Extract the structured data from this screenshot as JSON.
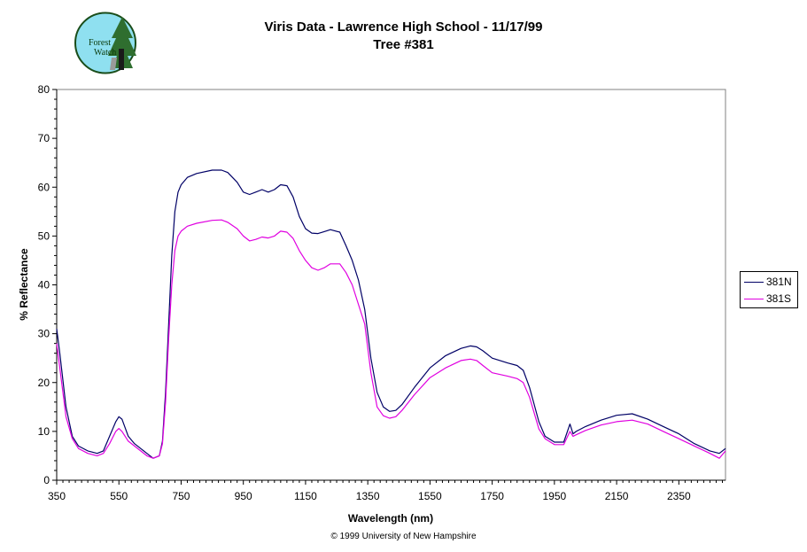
{
  "logo": {
    "text_line1": "Forest",
    "text_line2": "Watch"
  },
  "copyright": "© 1999 University of New Hampshire",
  "colors": {
    "381N": "#000066",
    "381S": "#e000e0"
  },
  "chart_data": {
    "type": "line",
    "title": "Viris Data - Lawrence High School - 11/17/99",
    "subtitle": "Tree #381",
    "xlabel": "Wavelength (nm)",
    "ylabel": "% Reflectance",
    "xlim": [
      350,
      2500
    ],
    "ylim": [
      0,
      80
    ],
    "xticks": [
      350,
      550,
      750,
      950,
      1150,
      1350,
      1550,
      1750,
      1950,
      2150,
      2350
    ],
    "yticks": [
      0,
      10,
      20,
      30,
      40,
      50,
      60,
      70,
      80
    ],
    "grid": false,
    "legend": "right",
    "series": [
      {
        "name": "381N",
        "x": [
          350,
          360,
          380,
          400,
          420,
          450,
          480,
          500,
          520,
          540,
          550,
          560,
          580,
          600,
          620,
          640,
          660,
          680,
          690,
          700,
          710,
          720,
          730,
          740,
          750,
          770,
          800,
          850,
          880,
          900,
          930,
          950,
          970,
          990,
          1010,
          1030,
          1050,
          1070,
          1090,
          1110,
          1130,
          1150,
          1170,
          1190,
          1210,
          1230,
          1260,
          1280,
          1300,
          1320,
          1340,
          1360,
          1380,
          1400,
          1420,
          1440,
          1460,
          1500,
          1550,
          1600,
          1650,
          1680,
          1700,
          1720,
          1750,
          1800,
          1830,
          1850,
          1870,
          1900,
          1920,
          1950,
          1980,
          2000,
          2010,
          2020,
          2050,
          2100,
          2150,
          2200,
          2250,
          2300,
          2350,
          2400,
          2450,
          2480,
          2500
        ],
        "y": [
          31,
          26,
          15,
          9,
          7,
          6,
          5.5,
          6,
          9,
          12,
          13,
          12.5,
          9,
          7.5,
          6.5,
          5.5,
          4.5,
          5,
          8,
          18,
          32,
          46,
          55,
          59,
          60.5,
          62,
          62.8,
          63.5,
          63.5,
          63,
          61,
          59,
          58.5,
          59,
          59.5,
          59,
          59.5,
          60.5,
          60.3,
          58,
          54,
          51.5,
          50.6,
          50.5,
          50.9,
          51.3,
          50.8,
          48,
          45,
          41,
          35,
          25,
          18,
          15,
          14.1,
          14.3,
          15.5,
          19,
          23,
          25.5,
          27,
          27.5,
          27.3,
          26.5,
          25,
          24,
          23.5,
          22.5,
          19,
          12,
          9,
          7.8,
          7.8,
          11.5,
          9.5,
          10,
          11,
          12.3,
          13.3,
          13.6,
          12.5,
          11,
          9.5,
          7.5,
          6,
          5.5,
          6.5
        ]
      },
      {
        "name": "381S",
        "x": [
          350,
          360,
          380,
          400,
          420,
          450,
          480,
          500,
          520,
          540,
          550,
          560,
          580,
          600,
          620,
          640,
          660,
          680,
          690,
          700,
          710,
          720,
          730,
          740,
          750,
          770,
          800,
          850,
          880,
          900,
          930,
          950,
          970,
          990,
          1010,
          1030,
          1050,
          1070,
          1090,
          1110,
          1130,
          1150,
          1170,
          1190,
          1210,
          1230,
          1260,
          1280,
          1300,
          1320,
          1340,
          1360,
          1380,
          1400,
          1420,
          1440,
          1460,
          1500,
          1550,
          1600,
          1650,
          1680,
          1700,
          1720,
          1750,
          1800,
          1830,
          1850,
          1870,
          1900,
          1920,
          1950,
          1980,
          2000,
          2010,
          2020,
          2050,
          2100,
          2150,
          2200,
          2250,
          2300,
          2350,
          2400,
          2450,
          2480,
          2500
        ],
        "y": [
          28,
          23,
          13,
          8.5,
          6.5,
          5.5,
          5,
          5.5,
          7.5,
          10,
          10.6,
          10,
          8,
          7,
          6,
          5,
          4.5,
          5,
          7.5,
          16,
          29,
          40,
          47,
          50,
          51,
          52,
          52.6,
          53.2,
          53.3,
          52.8,
          51.5,
          50,
          49,
          49.3,
          49.8,
          49.6,
          50,
          51,
          50.8,
          49.5,
          47,
          45,
          43.5,
          43,
          43.5,
          44.3,
          44.3,
          42.5,
          40,
          36,
          32,
          22,
          15,
          13.2,
          12.7,
          13,
          14.3,
          17.5,
          21,
          23,
          24.5,
          24.8,
          24.5,
          23.5,
          22,
          21.3,
          20.8,
          20,
          17,
          10.5,
          8.5,
          7.3,
          7.3,
          10,
          9,
          9.3,
          10.2,
          11.3,
          12,
          12.3,
          11.5,
          10,
          8.5,
          7,
          5.5,
          4.5,
          6
        ]
      }
    ]
  }
}
